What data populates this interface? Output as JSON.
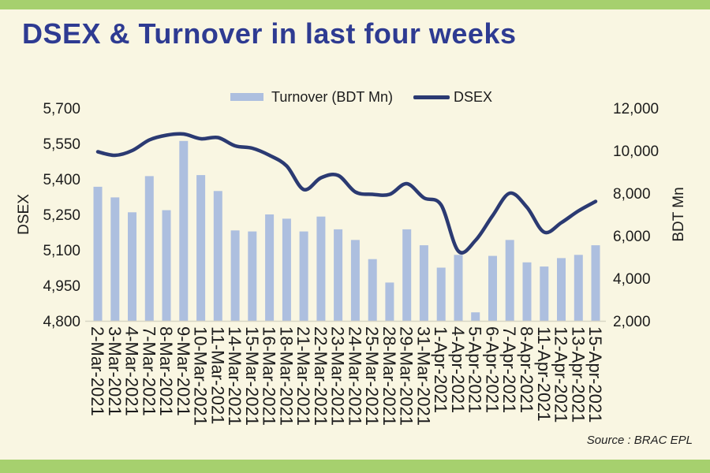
{
  "page": {
    "title": "DSEX & Turnover in last four weeks",
    "source": "Source : BRAC EPL"
  },
  "legend": {
    "turnover": "Turnover (BDT Mn)",
    "dsex": "DSEX"
  },
  "colors": {
    "background": "#f9f6e2",
    "border_band": "#a6d06e",
    "bar": "#adbfdf",
    "line": "#2b3a72",
    "title": "#2e3b92",
    "axis_text": "#1c1c1c",
    "baseline": "#d8d5c4"
  },
  "chart_data": {
    "type": "bar+line",
    "title": "DSEX & Turnover in last four weeks",
    "gridlines": false,
    "legend_position": "top",
    "categories": [
      "2-Mar-2021",
      "3-Mar-2021",
      "4-Mar-2021",
      "7-Mar-2021",
      "8-Mar-2021",
      "9-Mar-2021",
      "10-Mar-2021",
      "11-Mar-2021",
      "14-Mar-2021",
      "15-Mar-2021",
      "16-Mar-2021",
      "18-Mar-2021",
      "21-Mar-2021",
      "22-Mar-2021",
      "23-Mar-2021",
      "24-Mar-2021",
      "25-Mar-2021",
      "28-Mar-2021",
      "29-Mar-2021",
      "31-Mar-2021",
      "1-Apr-2021",
      "4-Apr-2021",
      "5-Apr-2021",
      "6-Apr-2021",
      "7-Apr-2021",
      "8-Apr-2021",
      "11-Apr-2021",
      "12-Apr-2021",
      "13-Apr-2021",
      "15-Apr-2021"
    ],
    "series": [
      {
        "name": "Turnover (BDT Mn)",
        "type": "bar",
        "axis": "right",
        "values": [
          8300,
          7800,
          7100,
          8800,
          7200,
          10450,
          8850,
          8100,
          6250,
          6200,
          7000,
          6800,
          6200,
          6900,
          6300,
          5800,
          4900,
          3800,
          6300,
          5550,
          4500,
          5100,
          2400,
          5050,
          5800,
          4750,
          4550,
          4950,
          5100,
          5550
        ]
      },
      {
        "name": "DSEX",
        "type": "line",
        "axis": "left",
        "values": [
          5515,
          5500,
          5520,
          5565,
          5585,
          5590,
          5570,
          5575,
          5540,
          5530,
          5500,
          5455,
          5355,
          5405,
          5415,
          5345,
          5335,
          5335,
          5380,
          5320,
          5290,
          5095,
          5140,
          5245,
          5340,
          5280,
          5175,
          5215,
          5265,
          5305
        ]
      }
    ],
    "left_axis": {
      "title": "DSEX",
      "min": 4800,
      "max": 5700,
      "tick_step": 150,
      "tick_labels": [
        "5,700",
        "5,550",
        "5,400",
        "5,250",
        "5,100",
        "4,950",
        "4,800"
      ]
    },
    "right_axis": {
      "title": "BDT Mn",
      "min": 2000,
      "max": 12000,
      "tick_step": 2000,
      "tick_labels": [
        "12,000",
        "10,000",
        "8,000",
        "6,000",
        "4,000",
        "2,000"
      ]
    }
  }
}
